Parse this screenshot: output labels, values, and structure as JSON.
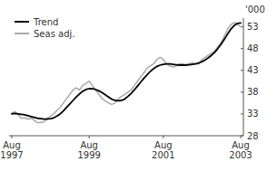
{
  "chart_data": {
    "type": "line",
    "ylabel": "'000",
    "categories": [
      "Aug\n1997",
      null,
      null,
      null,
      null,
      null,
      null,
      null,
      null,
      null,
      null,
      null,
      null,
      null,
      null,
      null,
      null,
      null,
      null,
      null,
      null,
      null,
      null,
      null,
      "Aug\n1999",
      null,
      null,
      null,
      null,
      null,
      null,
      null,
      null,
      null,
      null,
      null,
      null,
      null,
      null,
      null,
      null,
      null,
      null,
      null,
      null,
      null,
      null,
      "Aug\n2001",
      null,
      null,
      null,
      null,
      null,
      null,
      null,
      null,
      null,
      null,
      null,
      null,
      null,
      null,
      null,
      null,
      null,
      null,
      null,
      null,
      null,
      null,
      null,
      "Aug\n2003"
    ],
    "series": [
      {
        "name": "Seas adj.",
        "color": "#aaaaaa",
        "values": [
          33.2,
          33.5,
          32.8,
          32.0,
          32.1,
          31.8,
          32.0,
          31.5,
          31.0,
          31.0,
          31.2,
          32.0,
          32.5,
          33.0,
          33.8,
          34.5,
          35.5,
          36.5,
          37.5,
          38.5,
          39.0,
          38.5,
          39.5,
          40.0,
          40.5,
          39.5,
          38.5,
          37.5,
          36.5,
          36.0,
          35.5,
          35.2,
          35.5,
          36.5,
          37.0,
          37.5,
          38.0,
          38.5,
          39.5,
          40.5,
          41.5,
          42.5,
          43.5,
          44.0,
          44.5,
          45.5,
          46.0,
          45.5,
          44.5,
          44.0,
          43.8,
          44.0,
          44.5,
          44.5,
          44.3,
          44.5,
          44.8,
          44.5,
          44.5,
          45.5,
          46.0,
          46.5,
          47.0,
          47.5,
          48.5,
          49.5,
          51.0,
          52.5,
          53.5,
          54.0,
          53.5,
          53.0
        ]
      },
      {
        "name": "Trend",
        "color": "#000000",
        "values": [
          33.0,
          33.1,
          33.0,
          32.9,
          32.8,
          32.6,
          32.4,
          32.2,
          32.0,
          31.9,
          31.8,
          31.8,
          31.9,
          32.1,
          32.5,
          33.0,
          33.7,
          34.5,
          35.3,
          36.1,
          36.9,
          37.6,
          38.2,
          38.6,
          38.8,
          38.8,
          38.6,
          38.3,
          37.9,
          37.4,
          36.9,
          36.4,
          36.1,
          36.0,
          36.1,
          36.4,
          37.0,
          37.7,
          38.5,
          39.4,
          40.3,
          41.2,
          42.0,
          42.8,
          43.4,
          43.9,
          44.2,
          44.4,
          44.5,
          44.5,
          44.4,
          44.3,
          44.2,
          44.2,
          44.2,
          44.3,
          44.4,
          44.5,
          44.7,
          45.0,
          45.4,
          45.9,
          46.5,
          47.2,
          48.1,
          49.1,
          50.2,
          51.4,
          52.5,
          53.3,
          53.8,
          53.9
        ]
      }
    ],
    "ylim": [
      28,
      55
    ],
    "yticks": [
      28,
      33,
      38,
      43,
      48,
      53
    ],
    "legend": "upper left"
  }
}
